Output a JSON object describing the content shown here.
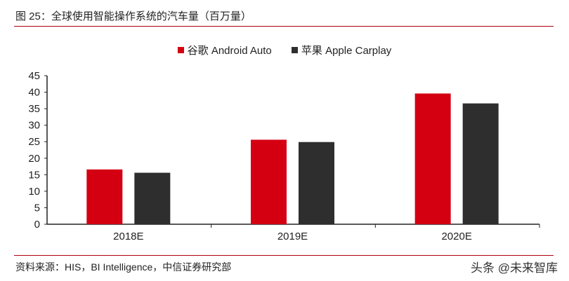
{
  "title": "图 25：全球使用智能操作系统的汽车量（百万量）",
  "source": "资料来源：HIS，BI Intelligence，中信证券研究部",
  "watermark": "头条 @未来智库",
  "chart_data": {
    "type": "bar",
    "categories": [
      "2018E",
      "2019E",
      "2020E"
    ],
    "series": [
      {
        "name": "谷歌 Android Auto",
        "color": "#d40012",
        "values": [
          16.6,
          25.6,
          39.6
        ]
      },
      {
        "name": "苹果 Apple Carplay",
        "color": "#2e2e2e",
        "values": [
          15.6,
          24.9,
          36.6
        ]
      }
    ],
    "ylim": [
      0,
      45
    ],
    "yticks": [
      0,
      5,
      10,
      15,
      20,
      25,
      30,
      35,
      40,
      45
    ],
    "grid": false,
    "legend": "top-center"
  }
}
